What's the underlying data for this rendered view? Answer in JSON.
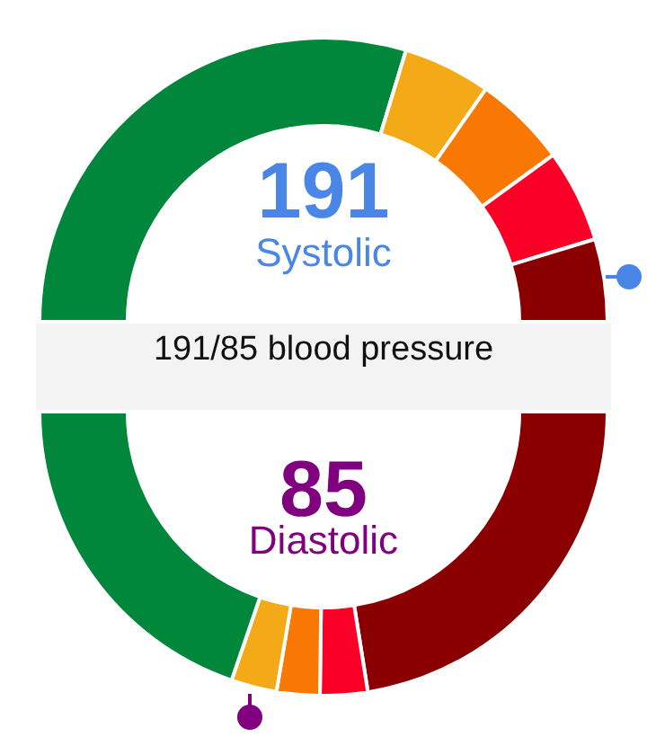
{
  "chart_data": [
    {
      "type": "donut",
      "title": "191/85 blood pressure",
      "annotations": [
        "191",
        "Systolic"
      ],
      "categories": [
        null,
        null,
        null,
        null,
        null
      ],
      "values": [
        59.4,
        10,
        10.6,
        10.6,
        9.4
      ],
      "colors": [
        "#00873c",
        "#f4aa16",
        "#f97803",
        "#fb0026",
        "#8a0000"
      ],
      "legend": false
    },
    {
      "type": "donut",
      "annotations": [
        "85",
        "Diastolic"
      ],
      "categories": [
        null,
        null,
        null,
        null,
        null
      ],
      "values": [
        45,
        5.4,
        4.9,
        5.2,
        39.5
      ],
      "colors": [
        "#8a0000",
        "#fb0026",
        "#f97803",
        "#f4aa16",
        "#00873c"
      ],
      "legend": false
    }
  ]
}
